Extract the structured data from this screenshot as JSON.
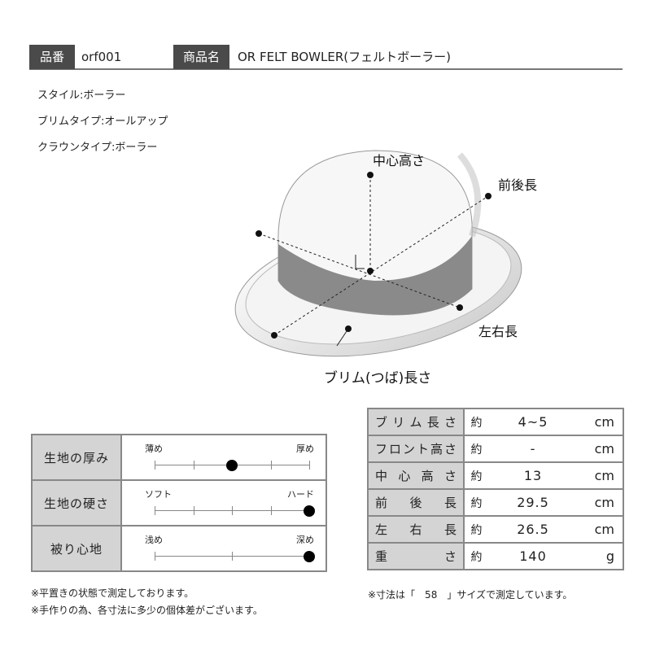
{
  "header": {
    "code_label": "品番",
    "code": "orf001",
    "name_label": "商品名",
    "name": "OR FELT BOWLER(フェルトボーラー)"
  },
  "specs": [
    "スタイル:ボーラー",
    "ブリムタイプ:オールアップ",
    "クラウンタイプ:ボーラー"
  ],
  "diagram": {
    "center_height": "中心高さ",
    "front_back": "前後長",
    "left_right": "左右長",
    "brim": "ブリム(つば)長さ"
  },
  "feel": [
    {
      "label": "生地の厚み",
      "min": "薄め",
      "max": "厚め",
      "ticks": 5,
      "level": 0.5
    },
    {
      "label": "生地の硬さ",
      "min": "ソフト",
      "max": "ハード",
      "ticks": 5,
      "level": 1.0
    },
    {
      "label": "被り心地",
      "min": "浅め",
      "max": "深め",
      "ticks": 3,
      "level": 1.0
    }
  ],
  "measurements": [
    {
      "label": "ブリム長さ",
      "approx": "約",
      "value": "4~5",
      "unit": "cm"
    },
    {
      "label": "フロント高さ",
      "approx": "約",
      "value": "-",
      "unit": "cm"
    },
    {
      "label": "中心高さ",
      "approx": "約",
      "value": "13",
      "unit": "cm"
    },
    {
      "label": "前後長",
      "approx": "約",
      "value": "29.5",
      "unit": "cm"
    },
    {
      "label": "左右長",
      "approx": "約",
      "value": "26.5",
      "unit": "cm"
    },
    {
      "label": "重さ",
      "approx": "約",
      "value": "140",
      "unit": "g"
    }
  ],
  "notes_left": [
    "※平置きの状態で測定しております。",
    "※手作りの為、各寸法に多少の個体差がございます。"
  ],
  "note_right": "※寸法は「　58　」サイズで測定しています。"
}
